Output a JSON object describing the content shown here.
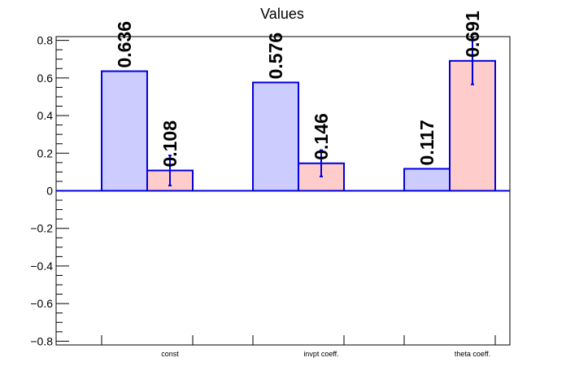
{
  "chart_data": {
    "type": "bar",
    "title": "Values",
    "xlabel": "",
    "ylabel": "",
    "categories": [
      "const",
      "invpt coeff.",
      "theta coeff."
    ],
    "ylim": [
      -0.82,
      0.82
    ],
    "yticks": [
      -0.8,
      -0.6,
      -0.4,
      -0.2,
      0,
      0.2,
      0.4,
      0.6,
      0.8
    ],
    "ytick_labels": [
      "−0.8",
      "−0.6",
      "−0.4",
      "−0.2",
      "0",
      "0.2",
      "0.4",
      "0.6",
      "0.8"
    ],
    "series": [
      {
        "values": [
          0.636,
          0.576,
          0.117
        ],
        "labels": [
          "0.636",
          "0.576",
          "0.117"
        ],
        "fill": "#ccccff",
        "stroke": "#0000dd"
      },
      {
        "values": [
          0.108,
          0.146,
          0.691
        ],
        "labels": [
          "0.108",
          "0.146",
          "0.691"
        ],
        "errors": [
          0.08,
          0.07,
          0.125
        ],
        "fill": "#ffcccc",
        "stroke": "#0000dd"
      }
    ],
    "grid": false,
    "legend": "none"
  },
  "colors": {
    "axis": "#000000",
    "bar_outline": "#0000dd",
    "zero_line": "#0000dd"
  }
}
